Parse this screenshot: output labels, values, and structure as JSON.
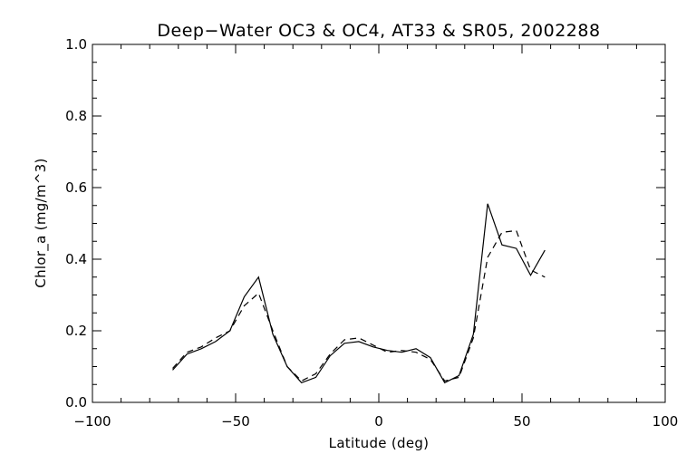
{
  "chart_data": {
    "type": "line",
    "title": "Deep−Water OC3 & OC4, AT33 & SR05, 2002288",
    "xlabel": "Latitude (deg)",
    "ylabel": "Chlor_a (mg/m^3)",
    "xlim": [
      -100,
      100
    ],
    "ylim": [
      0.0,
      1.0
    ],
    "xticks": [
      -100,
      -50,
      0,
      50,
      100
    ],
    "xtick_labels": [
      "−100",
      "−50",
      "0",
      "50",
      "100"
    ],
    "yticks": [
      0.0,
      0.2,
      0.4,
      0.6,
      0.8,
      1.0
    ],
    "ytick_labels": [
      "0.0",
      "0.2",
      "0.4",
      "0.6",
      "0.8",
      "1.0"
    ],
    "grid": false,
    "series": [
      {
        "style": "solid",
        "color": "#000000",
        "x": [
          -72,
          -67,
          -62,
          -57,
          -52,
          -47,
          -42,
          -37,
          -32,
          -27,
          -22,
          -17,
          -12,
          -7,
          -2,
          3,
          8,
          13,
          18,
          23,
          28,
          33,
          38,
          43,
          48,
          53,
          58
        ],
        "y": [
          0.09,
          0.135,
          0.15,
          0.17,
          0.2,
          0.295,
          0.35,
          0.19,
          0.1,
          0.055,
          0.07,
          0.13,
          0.165,
          0.17,
          0.155,
          0.145,
          0.14,
          0.15,
          0.125,
          0.055,
          0.075,
          0.19,
          0.555,
          0.44,
          0.43,
          0.355,
          0.425
        ]
      },
      {
        "style": "dashed",
        "color": "#000000",
        "x": [
          -72,
          -67,
          -62,
          -57,
          -52,
          -47,
          -42,
          -37,
          -32,
          -27,
          -22,
          -17,
          -12,
          -7,
          -2,
          3,
          8,
          13,
          18,
          23,
          28,
          33,
          38,
          43,
          48,
          53,
          58
        ],
        "y": [
          0.095,
          0.14,
          0.155,
          0.18,
          0.2,
          0.27,
          0.305,
          0.2,
          0.1,
          0.06,
          0.08,
          0.135,
          0.175,
          0.18,
          0.16,
          0.14,
          0.145,
          0.14,
          0.12,
          0.06,
          0.07,
          0.18,
          0.405,
          0.475,
          0.48,
          0.37,
          0.35
        ]
      }
    ]
  }
}
